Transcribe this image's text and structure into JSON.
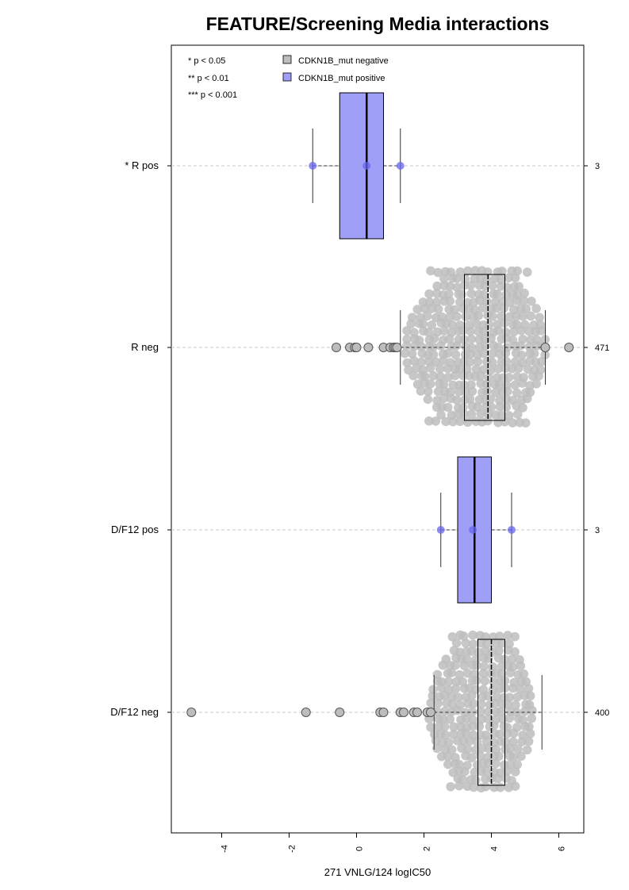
{
  "chart_data": {
    "type": "boxplot",
    "orientation": "horizontal",
    "title": "FEATURE/Screening Media interactions",
    "xlabel": "271 VNLG/124 logIC50",
    "xlim": [
      -5.0,
      7.0
    ],
    "x_ticks": [
      "-4",
      "-2",
      "0",
      "2",
      "4",
      "6"
    ],
    "x_tick_values": [
      -4,
      -2,
      0,
      2,
      4,
      6
    ],
    "significance_legend": [
      "* p < 0.05",
      "** p < 0.01",
      "*** p < 0.001"
    ],
    "legend": [
      {
        "label": "CDKN1B_mut negative",
        "color": "#bdbdbd"
      },
      {
        "label": "CDKN1B_mut positive",
        "color": "#9f9ff8"
      }
    ],
    "colors": {
      "negative": "#bdbdbd",
      "positive": "#9f9ff8",
      "positive_point": "#6666ee",
      "grid": "#c8c8c8"
    },
    "groups": [
      {
        "label": "* R pos",
        "n": "3",
        "mutation": "positive",
        "min": -1.3,
        "q1": -0.5,
        "median": 0.3,
        "q3": 0.8,
        "max": 1.3,
        "points": [
          -1.3,
          0.3,
          1.3
        ]
      },
      {
        "label": "R neg",
        "n": "471",
        "mutation": "negative",
        "min": 1.3,
        "q1": 3.2,
        "median": 3.9,
        "q3": 4.4,
        "max": 5.6,
        "outliers": [
          -0.6,
          -0.2,
          -0.05,
          0.0,
          0.35,
          0.8,
          1.0,
          1.1,
          1.15,
          1.2,
          5.6,
          6.3
        ]
      },
      {
        "label": "D/F12 pos",
        "n": "3",
        "mutation": "positive",
        "min": 2.5,
        "q1": 3.0,
        "median": 3.5,
        "q3": 4.0,
        "max": 4.6,
        "points": [
          2.5,
          3.45,
          4.6
        ]
      },
      {
        "label": "D/F12 neg",
        "n": "400",
        "mutation": "negative",
        "min": 2.3,
        "q1": 3.6,
        "median": 4.0,
        "q3": 4.4,
        "max": 5.5,
        "outliers": [
          -4.9,
          -1.5,
          -0.5,
          0.7,
          0.8,
          1.3,
          1.4,
          1.7,
          1.8,
          2.1,
          2.2
        ]
      }
    ]
  }
}
